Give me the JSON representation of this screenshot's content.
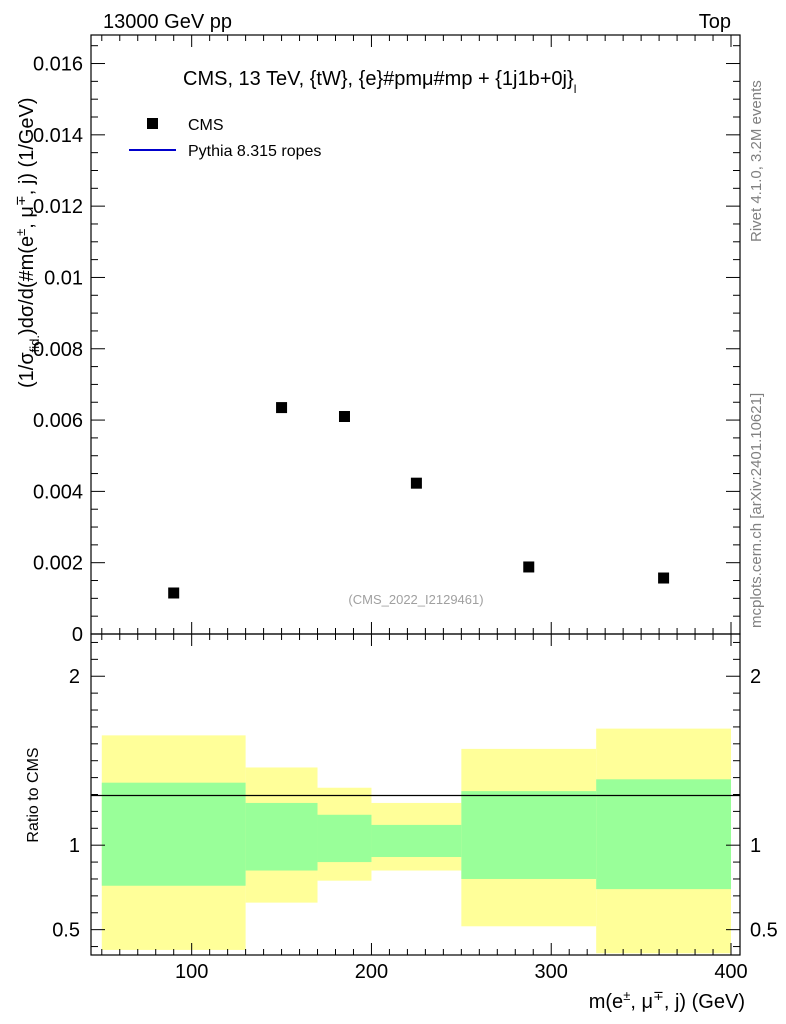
{
  "header": {
    "left": "13000 GeV pp",
    "right": "Top"
  },
  "side_labels": {
    "rivet": "Rivet 4.1.0,  3.2M events",
    "source": "mcplots.cern.ch [arXiv:2401.10621]"
  },
  "chart_data": {
    "type": "scatter",
    "title": "CMS, 13 TeV, {tW}, {e}#pmμ#mp + {1j1b+0j}",
    "title_subscript": "l",
    "watermark": "(CMS_2022_I2129461)",
    "ylabel": "(1/σ_{fid.})dσ/d(#m(e±, μ∓, j) (1/GeV)",
    "ylabel_parts": {
      "a": "(1/σ",
      "a_sub": "fid.",
      "b": ")dσ/d(#m(e",
      "b_sup": "±",
      "c": ", μ",
      "c_sup": "∓",
      "d": ", j) (1/GeV)"
    },
    "xlabel_parts": {
      "a": "m(e",
      "a_sup": "±",
      "b": ", μ",
      "b_sup": "∓",
      "c": ", j) (GeV)"
    },
    "legend_placement": "top-left",
    "legend": [
      {
        "name": "CMS",
        "marker": "square",
        "color": "#000000"
      },
      {
        "name": "Pythia 8.315 ropes",
        "marker": "line",
        "color": "#0000cc"
      }
    ],
    "xlim": [
      44,
      405
    ],
    "x_ticks": [
      100,
      200,
      300,
      400
    ],
    "x_tick_labels": [
      "100",
      "200",
      "300",
      "400"
    ],
    "main": {
      "ylim": [
        0,
        0.0168
      ],
      "y_ticks": [
        0,
        0.002,
        0.004,
        0.006,
        0.008,
        0.01,
        0.012,
        0.014,
        0.016
      ],
      "y_tick_labels": [
        "0",
        "0.002",
        "0.004",
        "0.006",
        "0.008",
        "0.01",
        "0.012",
        "0.014",
        "0.016"
      ],
      "series": [
        {
          "name": "CMS",
          "bins": [
            [
              50,
              130
            ],
            [
              130,
              170
            ],
            [
              170,
              200
            ],
            [
              200,
              250
            ],
            [
              250,
              325
            ],
            [
              325,
              400
            ]
          ],
          "x": [
            90,
            150,
            185,
            225,
            287.5,
            362.5
          ],
          "y": [
            0.00115,
            0.00635,
            0.0061,
            0.00423,
            0.00188,
            0.00157
          ]
        }
      ]
    },
    "ratio": {
      "ylabel": "Ratio to CMS",
      "ylim": [
        0.35,
        2.25
      ],
      "y_ticks": [
        0.5,
        1,
        2
      ],
      "y_tick_labels": [
        "0.5",
        "1",
        "2"
      ],
      "bins": [
        [
          50,
          130
        ],
        [
          130,
          170
        ],
        [
          170,
          200
        ],
        [
          200,
          250
        ],
        [
          250,
          325
        ],
        [
          325,
          400
        ]
      ],
      "band_inner": [
        [
          0.76,
          1.37
        ],
        [
          0.85,
          1.25
        ],
        [
          0.9,
          1.18
        ],
        [
          0.93,
          1.12
        ],
        [
          0.8,
          1.32
        ],
        [
          0.74,
          1.39
        ]
      ],
      "band_outer": [
        [
          0.38,
          1.65
        ],
        [
          0.66,
          1.46
        ],
        [
          0.79,
          1.34
        ],
        [
          0.85,
          1.25
        ],
        [
          0.52,
          1.57
        ],
        [
          0.36,
          1.69
        ]
      ],
      "colors": {
        "inner": "#99ff99",
        "outer": "#ffff99",
        "unity_line": "#000000"
      }
    }
  }
}
